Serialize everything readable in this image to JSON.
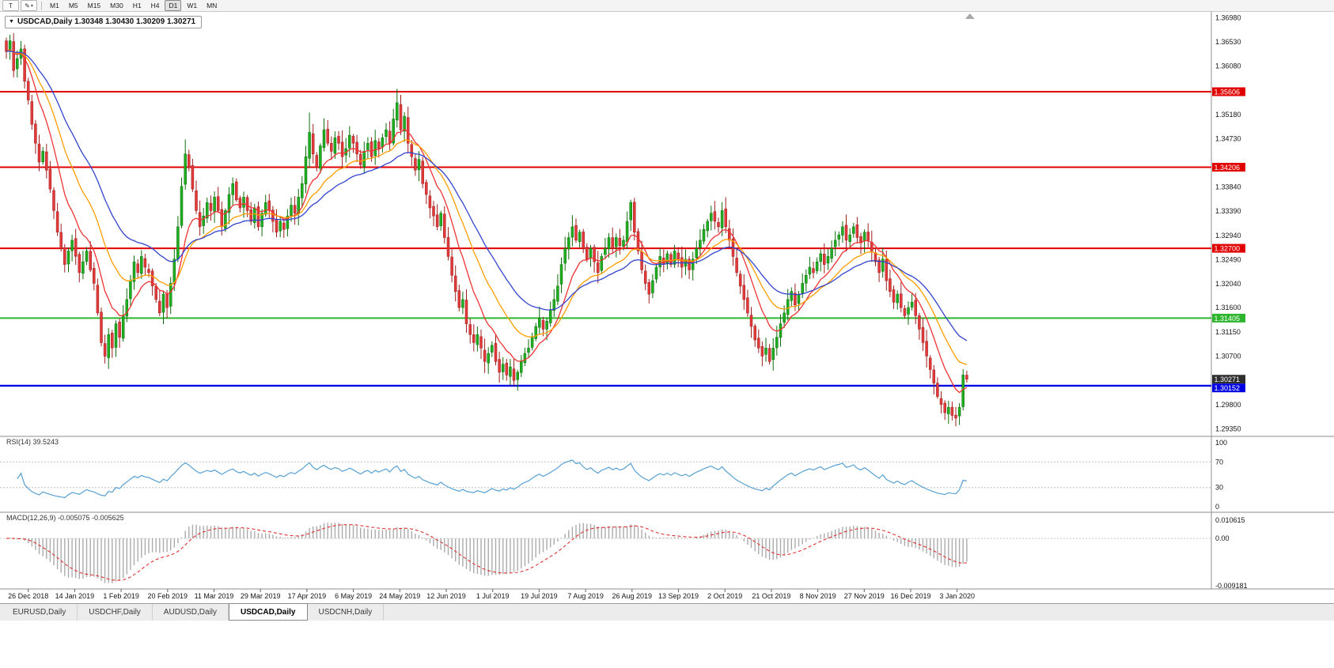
{
  "toolbar": {
    "tool_buttons": [
      {
        "label": "T"
      },
      {
        "label": "✎"
      }
    ],
    "timeframes": [
      "M1",
      "M5",
      "M15",
      "M30",
      "H1",
      "H4",
      "D1",
      "W1",
      "MN"
    ],
    "active_timeframe": "D1"
  },
  "title": {
    "expander": "▼",
    "text": "USDCAD,Daily 1.30348 1.30430 1.30209 1.30271"
  },
  "price_axis": {
    "labels": [
      "1.36980",
      "1.36530",
      "1.36080",
      "1.35180",
      "1.34730",
      "1.33840",
      "1.33390",
      "1.32940",
      "1.32490",
      "1.32040",
      "1.31600",
      "1.31150",
      "1.30700",
      "1.29800",
      "1.29350"
    ]
  },
  "levels": [
    {
      "label": "1.35606",
      "price": 1.35606,
      "color": "#e00000",
      "type": "resistance"
    },
    {
      "label": "1.34206",
      "price": 1.34206,
      "color": "#e00000",
      "type": "resistance"
    },
    {
      "label": "1.32700",
      "price": 1.327,
      "color": "#e00000",
      "type": "resistance"
    },
    {
      "label": "1.31405",
      "price": 1.31405,
      "color": "#2eb52e",
      "type": "support"
    },
    {
      "label": "1.30152",
      "price": 1.30152,
      "color": "#0000e0",
      "type": "support"
    }
  ],
  "current_price": {
    "label": "1.30271",
    "price": 1.30271,
    "color": "#2f2f2f"
  },
  "rsi": {
    "header": "RSI(14) 39.5243",
    "value": 39.5243,
    "axis_labels": [
      "100",
      "70",
      "30",
      "0"
    ],
    "axis_values": [
      100,
      70,
      30,
      0
    ],
    "guide_levels": [
      70,
      30
    ]
  },
  "macd": {
    "header": "MACD(12,26,9) -0.005075 -0.005625",
    "macd_value": -0.005075,
    "signal_value": -0.005625,
    "axis_labels": [
      "0.010615",
      "0.00",
      "-0.009181"
    ],
    "axis_max": 0.010615,
    "axis_min": -0.009181
  },
  "time_axis": {
    "dates": [
      "26 Dec 2018",
      "14 Jan 2019",
      "1 Feb 2019",
      "20 Feb 2019",
      "11 Mar 2019",
      "29 Mar 2019",
      "17 Apr 2019",
      "6 May 2019",
      "24 May 2019",
      "12 Jun 2019",
      "1 Jul 2019",
      "19 Jul 2019",
      "7 Aug 2019",
      "26 Aug 2019",
      "13 Sep 2019",
      "2 Oct 2019",
      "21 Oct 2019",
      "8 Nov 2019",
      "27 Nov 2019",
      "16 Dec 2019",
      "3 Jan 2020"
    ]
  },
  "tabs": [
    {
      "label": "EURUSD,Daily",
      "active": false
    },
    {
      "label": "USDCHF,Daily",
      "active": false
    },
    {
      "label": "AUDUSD,Daily",
      "active": false
    },
    {
      "label": "USDCAD,Daily",
      "active": true
    },
    {
      "label": "USDCNH,Daily",
      "active": false
    }
  ],
  "chart_data": {
    "type": "candlestick",
    "symbol": "USDCAD",
    "period": "Daily",
    "last_candle": {
      "open": 1.30348,
      "high": 1.3043,
      "low": 1.30209,
      "close": 1.30271
    },
    "key_extremes": {
      "1": {
        "high": 1.366
      },
      "27": {
        "low": 1.3062
      },
      "49": {
        "high": 1.3472
      },
      "83": {
        "high": 1.3522
      },
      "107": {
        "high": 1.3566
      },
      "139": {
        "low": 1.3015
      },
      "260": {
        "low": 1.295
      }
    },
    "overlays": [
      {
        "name": "ma-fast",
        "color": "#ee3333",
        "period": 10
      },
      {
        "name": "ma-mid",
        "color": "#ff9d00",
        "period": 20
      },
      {
        "name": "ma-slow",
        "color": "#3344cc",
        "period": 34
      }
    ],
    "up_color": "#1fae1f",
    "down_color": "#e23a3a",
    "closes": [
      1.3635,
      1.3655,
      1.36,
      1.3622,
      1.364,
      1.358,
      1.3545,
      1.35,
      1.3465,
      1.343,
      1.345,
      1.3415,
      1.338,
      1.334,
      1.33,
      1.327,
      1.324,
      1.3265,
      1.3285,
      1.3255,
      1.3225,
      1.3245,
      1.3265,
      1.323,
      1.3205,
      1.315,
      1.3095,
      1.307,
      1.311,
      1.3085,
      1.313,
      1.3105,
      1.3145,
      1.3175,
      1.321,
      1.3245,
      1.3225,
      1.3255,
      1.3235,
      1.3225,
      1.32,
      1.3175,
      1.315,
      1.3185,
      1.316,
      1.3205,
      1.325,
      1.331,
      1.3385,
      1.3445,
      1.342,
      1.338,
      1.334,
      1.331,
      1.333,
      1.3355,
      1.334,
      1.3365,
      1.334,
      1.331,
      1.334,
      1.337,
      1.339,
      1.336,
      1.3345,
      1.3365,
      1.334,
      1.332,
      1.3345,
      1.331,
      1.3335,
      1.3355,
      1.334,
      1.332,
      1.33,
      1.332,
      1.3305,
      1.333,
      1.335,
      1.3335,
      1.3365,
      1.339,
      1.344,
      1.3485,
      1.3445,
      1.342,
      1.346,
      1.349,
      1.3465,
      1.345,
      1.3475,
      1.3465,
      1.344,
      1.3455,
      1.348,
      1.3465,
      1.3445,
      1.3425,
      1.345,
      1.3465,
      1.344,
      1.347,
      1.3455,
      1.3475,
      1.349,
      1.3465,
      1.351,
      1.354,
      1.349,
      1.3515,
      1.3465,
      1.344,
      1.3415,
      1.3435,
      1.339,
      1.337,
      1.3345,
      1.333,
      1.331,
      1.3335,
      1.329,
      1.3255,
      1.322,
      1.319,
      1.316,
      1.3175,
      1.313,
      1.311,
      1.3095,
      1.311,
      1.3085,
      1.306,
      1.3075,
      1.309,
      1.306,
      1.304,
      1.3055,
      1.3035,
      1.305,
      1.3025,
      1.304,
      1.306,
      1.3075,
      1.3085,
      1.3105,
      1.3125,
      1.314,
      1.312,
      1.3135,
      1.3155,
      1.3175,
      1.32,
      1.324,
      1.327,
      1.329,
      1.331,
      1.3285,
      1.33,
      1.327,
      1.325,
      1.327,
      1.3245,
      1.3225,
      1.3255,
      1.327,
      1.329,
      1.327,
      1.329,
      1.3275,
      1.3285,
      1.332,
      1.3355,
      1.33,
      1.3265,
      1.323,
      1.3205,
      1.3185,
      1.321,
      1.3235,
      1.3255,
      1.324,
      1.326,
      1.324,
      1.3265,
      1.325,
      1.3235,
      1.325,
      1.323,
      1.325,
      1.327,
      1.3285,
      1.3305,
      1.332,
      1.3335,
      1.332,
      1.331,
      1.334,
      1.331,
      1.3285,
      1.3255,
      1.3225,
      1.32,
      1.3175,
      1.315,
      1.3125,
      1.31,
      1.3085,
      1.307,
      1.3085,
      1.306,
      1.3085,
      1.3105,
      1.313,
      1.315,
      1.3175,
      1.319,
      1.3165,
      1.3185,
      1.3205,
      1.322,
      1.3235,
      1.3225,
      1.3245,
      1.326,
      1.324,
      1.3255,
      1.327,
      1.3285,
      1.3295,
      1.331,
      1.3285,
      1.3295,
      1.331,
      1.329,
      1.328,
      1.33,
      1.3285,
      1.3265,
      1.3245,
      1.3225,
      1.325,
      1.321,
      1.319,
      1.317,
      1.3185,
      1.316,
      1.3145,
      1.316,
      1.317,
      1.3145,
      1.312,
      1.3095,
      1.307,
      1.3045,
      1.302,
      1.2995,
      1.298,
      1.2965,
      1.2975,
      1.296,
      1.2955,
      1.2975,
      1.3035,
      1.30271
    ]
  }
}
